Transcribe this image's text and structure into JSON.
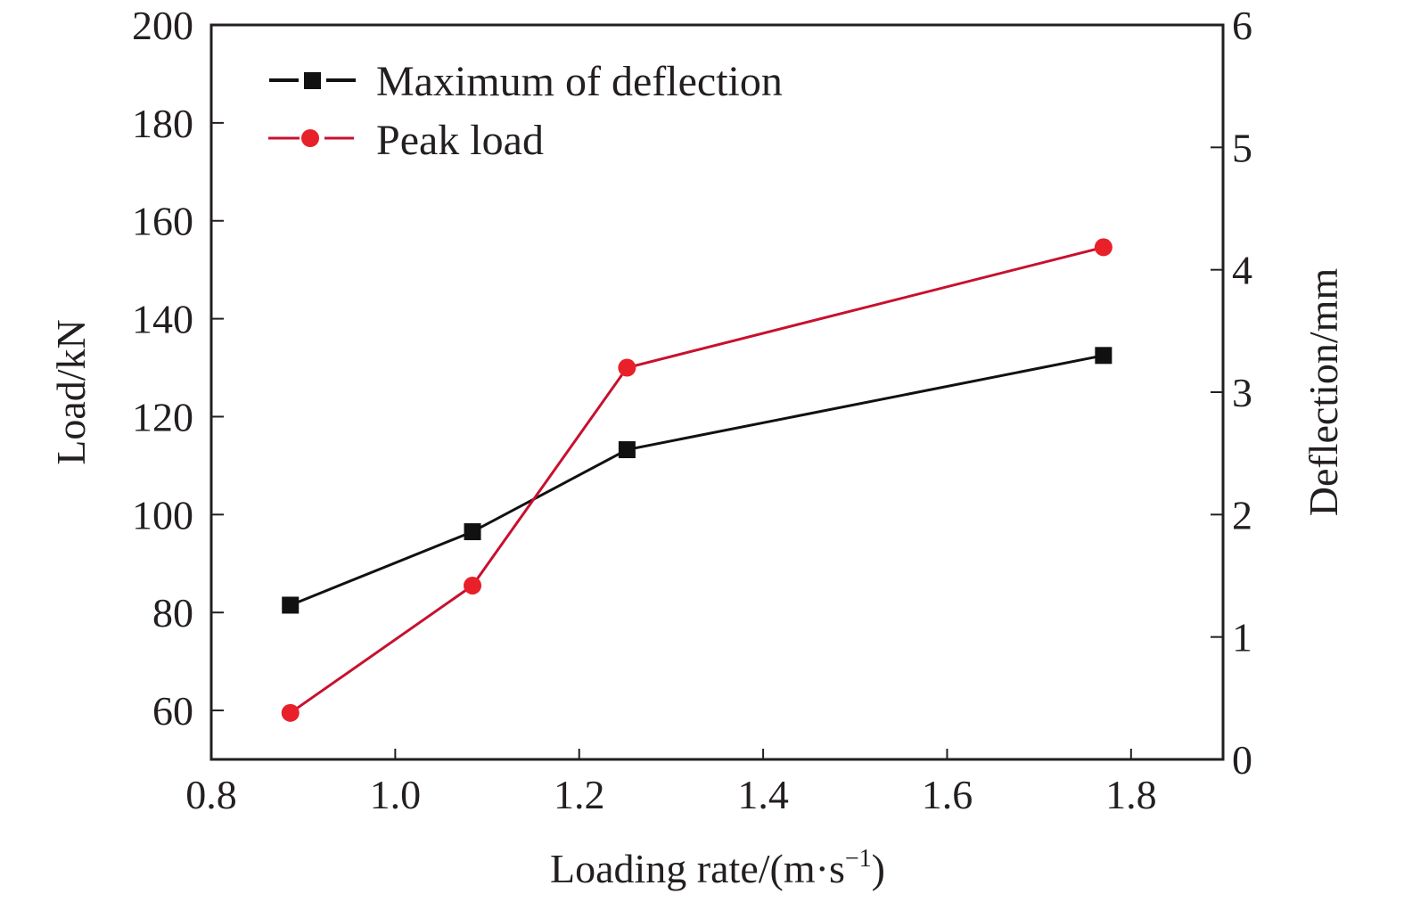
{
  "chart_data": {
    "type": "line",
    "title": "",
    "xlabel": "Loading rate/(m·s",
    "xlabel_sup": "−1",
    "xlabel_close": ")",
    "ylabel_left": "Load/kN",
    "ylabel_right": "Deflection/mm",
    "xlim": [
      0.8,
      1.9
    ],
    "ylim_left": [
      50,
      200
    ],
    "ylim_right": [
      0,
      6
    ],
    "x_ticks": [
      0.8,
      1.0,
      1.2,
      1.4,
      1.6,
      1.8
    ],
    "x_tick_labels": [
      "0.8",
      "1.0",
      "1.2",
      "1.4",
      "1.6",
      "1.8"
    ],
    "y_left_ticks": [
      60,
      80,
      100,
      120,
      140,
      160,
      180,
      200
    ],
    "y_left_tick_labels": [
      "60",
      "80",
      "100",
      "120",
      "140",
      "160",
      "180",
      "200"
    ],
    "y_right_ticks": [
      0,
      1,
      2,
      3,
      4,
      5,
      6
    ],
    "y_right_tick_labels": [
      "0",
      "1",
      "2",
      "3",
      "4",
      "5",
      "6"
    ],
    "grid": false,
    "legend_position": "top-left",
    "series": [
      {
        "name": "Maximum of deflection",
        "axis": "right",
        "marker": "square",
        "color": "#111111",
        "x": [
          0.886,
          1.084,
          1.252,
          1.77
        ],
        "values": [
          1.26,
          1.86,
          2.53,
          3.3
        ]
      },
      {
        "name": "Peak load",
        "axis": "left",
        "marker": "circle",
        "color": "#c8102e",
        "marker_color": "#e8202a",
        "x": [
          0.886,
          1.084,
          1.252,
          1.77
        ],
        "values": [
          59.5,
          85.5,
          130.0,
          154.6
        ]
      }
    ]
  }
}
